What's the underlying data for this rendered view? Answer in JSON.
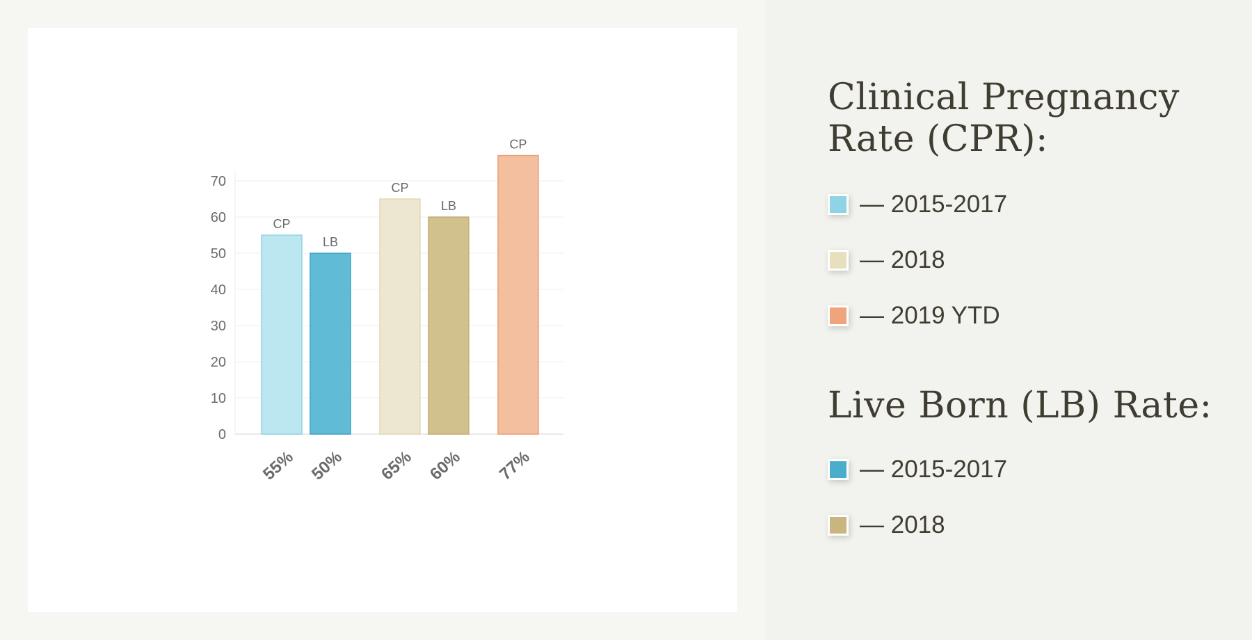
{
  "colors": {
    "cp_2015_2017": "#8fd3e6",
    "cp_2018": "#e7dfbe",
    "cp_2019_ytd": "#f0a47b",
    "lb_2015_2017": "#4badcc",
    "lb_2018": "#c9b67f"
  },
  "sidebar": {
    "cpr_title": "Clinical Pregnancy Rate (CPR):",
    "cpr_items": [
      {
        "label": "— 2015-2017",
        "color": "#8fd3e6"
      },
      {
        "label": "— 2018",
        "color": "#e7dfbe"
      },
      {
        "label": "— 2019 YTD",
        "color": "#f0a47b"
      }
    ],
    "lb_title": "Live Born (LB) Rate:",
    "lb_items": [
      {
        "label": "— 2015-2017",
        "color": "#4badcc"
      },
      {
        "label": "— 2018",
        "color": "#c9b67f"
      }
    ]
  },
  "chart_data": {
    "type": "bar",
    "title": "",
    "xlabel": "",
    "ylabel": "",
    "ylim": [
      0,
      75
    ],
    "yticks": [
      0,
      10,
      20,
      30,
      40,
      50,
      60,
      70
    ],
    "grid": true,
    "bars": [
      {
        "top_label": "CP",
        "value": 55,
        "value_label": "55%",
        "fill": "#bde7f0",
        "stroke": "#8fd3e6"
      },
      {
        "top_label": "LB",
        "value": 50,
        "value_label": "50%",
        "fill": "#60bbd6",
        "stroke": "#3fa2c2"
      },
      {
        "top_label": "CP",
        "value": 65,
        "value_label": "65%",
        "fill": "#ede6d0",
        "stroke": "#e3d9b7"
      },
      {
        "top_label": "LB",
        "value": 60,
        "value_label": "60%",
        "fill": "#d1c18d",
        "stroke": "#bfae74"
      },
      {
        "top_label": "CP",
        "value": 77,
        "value_label": "77%",
        "fill": "#f4bf9f",
        "stroke": "#ed9e78"
      }
    ]
  }
}
